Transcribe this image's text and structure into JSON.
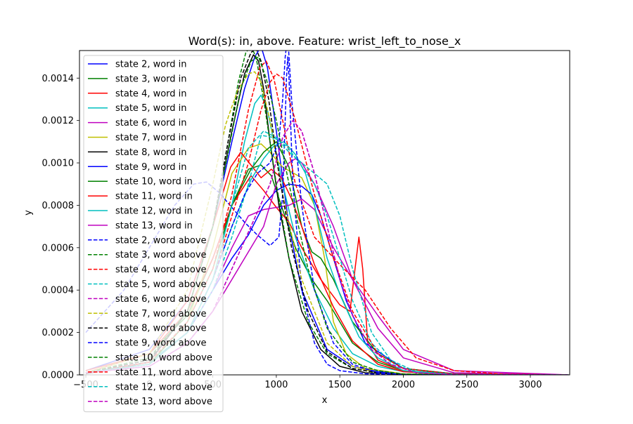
{
  "chart_data": {
    "type": "line",
    "title": "Word(s): in, above. Feature: wrist_left_to_nose_x",
    "xlabel": "x",
    "ylabel": "y",
    "xlim": [
      -550,
      3310
    ],
    "ylim": [
      0,
      0.00153
    ],
    "x_ticks": [
      -500,
      0,
      500,
      1000,
      1500,
      2000,
      2500,
      3000
    ],
    "x_tick_labels": [
      "−500",
      "0",
      "500",
      "1000",
      "1500",
      "2000",
      "2500",
      "3000"
    ],
    "y_ticks": [
      0,
      0.0002,
      0.0004,
      0.0006,
      0.0008,
      0.001,
      0.0012,
      0.0014
    ],
    "y_tick_labels": [
      "0.0000",
      "0.0002",
      "0.0004",
      "0.0006",
      "0.0008",
      "0.0010",
      "0.0012",
      "0.0014"
    ],
    "grid": false,
    "legend_position": "upper-left",
    "series": [
      {
        "name": "state 2, word in",
        "color": "#0000ff",
        "dash": "solid",
        "x": [
          -500,
          0,
          300,
          500,
          650,
          750,
          830,
          880,
          930,
          1000,
          1100,
          1200,
          1400,
          1600,
          1800,
          2000,
          2400,
          3300
        ],
        "y": [
          2e-05,
          0.00012,
          0.00035,
          0.0007,
          0.0011,
          0.00135,
          0.0015,
          0.00155,
          0.00145,
          0.00115,
          0.0007,
          0.0004,
          0.00012,
          4e-05,
          1.5e-05,
          5e-06,
          1e-06,
          0.0
        ]
      },
      {
        "name": "state 3, word in",
        "color": "#008000",
        "dash": "solid",
        "x": [
          -500,
          0,
          300,
          500,
          650,
          780,
          880,
          960,
          1050,
          1150,
          1280,
          1400,
          1600,
          1800,
          2000,
          2400,
          3300
        ],
        "y": [
          2e-05,
          0.0001,
          0.00028,
          0.00055,
          0.0008,
          0.00097,
          0.00099,
          0.00094,
          0.00078,
          0.0006,
          0.00045,
          0.00035,
          0.00015,
          6e-05,
          2e-05,
          3e-06,
          0.0
        ]
      },
      {
        "name": "state 4, word in",
        "color": "#ff0000",
        "dash": "solid",
        "x": [
          -500,
          0,
          300,
          500,
          650,
          800,
          900,
          1000,
          1100,
          1200,
          1350,
          1500,
          1580,
          1620,
          1650,
          1680,
          1720,
          1800,
          2000,
          2400,
          3300
        ],
        "y": [
          2e-05,
          0.0001,
          0.0003,
          0.00055,
          0.0008,
          0.00094,
          0.00087,
          0.00079,
          0.00072,
          0.0006,
          0.00045,
          0.00033,
          0.0003,
          0.0005,
          0.00065,
          0.0005,
          0.00015,
          7e-05,
          2e-05,
          4e-06,
          0.0
        ]
      },
      {
        "name": "state 5, word in",
        "color": "#00bfbf",
        "dash": "solid",
        "x": [
          -500,
          0,
          300,
          500,
          650,
          750,
          830,
          880,
          930,
          980,
          1050,
          1150,
          1300,
          1450,
          1600,
          1800,
          2000,
          2400,
          3300
        ],
        "y": [
          1e-05,
          6e-05,
          0.0002,
          0.00045,
          0.0008,
          0.0011,
          0.00128,
          0.00132,
          0.00125,
          0.0011,
          0.0009,
          0.00065,
          0.0004,
          0.00022,
          0.0001,
          4e-05,
          1.5e-05,
          3e-06,
          0.0
        ]
      },
      {
        "name": "state 6, word in",
        "color": "#bf00bf",
        "dash": "solid",
        "x": [
          -500,
          0,
          300,
          500,
          650,
          780,
          900,
          1000,
          1100,
          1200,
          1300,
          1450,
          1600,
          1800,
          2000,
          2400,
          3300
        ],
        "y": [
          1e-05,
          5e-05,
          0.0002,
          0.0004,
          0.0006,
          0.00075,
          0.00078,
          0.00079,
          0.0008,
          0.00083,
          0.00078,
          0.0006,
          0.00045,
          0.00028,
          0.00012,
          2e-05,
          0.0
        ]
      },
      {
        "name": "state 7, word in",
        "color": "#bfbf00",
        "dash": "solid",
        "x": [
          -500,
          0,
          300,
          500,
          650,
          780,
          880,
          950,
          1050,
          1200,
          1300,
          1380,
          1450,
          1550,
          1700,
          2000,
          2400,
          3300
        ],
        "y": [
          1e-05,
          5e-05,
          0.00025,
          0.0006,
          0.00095,
          0.00107,
          0.00109,
          0.00105,
          0.00098,
          0.00093,
          0.0008,
          0.00055,
          0.00025,
          0.0001,
          3e-05,
          5e-06,
          1e-06,
          0.0
        ]
      },
      {
        "name": "state 8, word in",
        "color": "#000000",
        "dash": "solid",
        "x": [
          -500,
          0,
          300,
          500,
          650,
          750,
          820,
          860,
          900,
          950,
          1020,
          1100,
          1200,
          1350,
          1500,
          1700,
          2000,
          2400,
          3300
        ],
        "y": [
          5e-06,
          6e-05,
          0.0003,
          0.0007,
          0.00115,
          0.00142,
          0.00151,
          0.00148,
          0.00135,
          0.0011,
          0.0008,
          0.00055,
          0.0003,
          0.00012,
          4e-05,
          1e-05,
          2e-06,
          0.0,
          0.0
        ]
      },
      {
        "name": "state 9, word in",
        "color": "#0000ff",
        "dash": "solid",
        "x": [
          -500,
          0,
          300,
          500,
          650,
          780,
          900,
          1000,
          1100,
          1200,
          1280,
          1350,
          1450,
          1550,
          1700,
          2000,
          2400,
          3300
        ],
        "y": [
          1e-05,
          5e-05,
          0.0002,
          0.0004,
          0.00055,
          0.00066,
          0.0008,
          0.00087,
          0.0009,
          0.00089,
          0.00085,
          0.00075,
          0.00055,
          0.00035,
          0.00015,
          3e-05,
          5e-06,
          0.0
        ]
      },
      {
        "name": "state 10, word in",
        "color": "#008000",
        "dash": "solid",
        "x": [
          -500,
          0,
          300,
          500,
          650,
          800,
          900,
          1000,
          1100,
          1200,
          1280,
          1350,
          1450,
          1600,
          1800,
          2000,
          2400,
          3300
        ],
        "y": [
          1e-05,
          5e-05,
          0.00025,
          0.0005,
          0.0008,
          0.00097,
          0.00105,
          0.0011,
          0.00098,
          0.0007,
          0.00058,
          0.00055,
          0.00045,
          0.00025,
          0.0001,
          3e-05,
          5e-06,
          0.0
        ]
      },
      {
        "name": "state 11, word in",
        "color": "#ff0000",
        "dash": "solid",
        "x": [
          -500,
          0,
          300,
          500,
          640,
          720,
          800,
          880,
          960,
          1040,
          1120,
          1200,
          1300,
          1450,
          1600,
          1800,
          2000,
          2400,
          3300
        ],
        "y": [
          1e-05,
          0.0001,
          0.00035,
          0.0007,
          0.00098,
          0.00105,
          0.00099,
          0.00093,
          0.00097,
          0.00093,
          0.00083,
          0.0007,
          0.00052,
          0.00032,
          0.00016,
          5e-05,
          1.5e-05,
          2e-06,
          0.0
        ]
      },
      {
        "name": "state 12, word in",
        "color": "#00bfbf",
        "dash": "solid",
        "x": [
          -500,
          0,
          300,
          500,
          650,
          800,
          900,
          980,
          1060,
          1150,
          1230,
          1300,
          1400,
          1500,
          1650,
          1800,
          2000,
          2400,
          3300
        ],
        "y": [
          1e-05,
          5e-05,
          0.0002,
          0.00045,
          0.0007,
          0.00092,
          0.00102,
          0.00108,
          0.0011,
          0.00104,
          0.00095,
          0.0008,
          0.00055,
          0.00038,
          0.00018,
          8e-05,
          2e-05,
          3e-06,
          0.0
        ]
      },
      {
        "name": "state 13, word in",
        "color": "#bf00bf",
        "dash": "solid",
        "x": [
          -500,
          0,
          300,
          500,
          650,
          800,
          900,
          1000,
          1100,
          1150,
          1200,
          1300,
          1450,
          1600,
          1800,
          2000,
          2400,
          3300
        ],
        "y": [
          1e-05,
          4e-05,
          0.00015,
          0.0003,
          0.00045,
          0.0006,
          0.0007,
          0.0009,
          0.001,
          0.00102,
          0.001,
          0.0009,
          0.0007,
          0.00045,
          0.00022,
          8e-05,
          1e-05,
          0.0
        ]
      },
      {
        "name": "state 2, word above",
        "color": "#0000ff",
        "dash": "dashed",
        "x": [
          -500,
          -200,
          0,
          200,
          350,
          450,
          550,
          650,
          750,
          850,
          950,
          1020,
          1050,
          1070,
          1080,
          1090,
          1100,
          1130,
          1200,
          1300,
          1400,
          1500,
          1700,
          2000,
          2400,
          3300
        ],
        "y": [
          0.0002,
          0.0004,
          0.0006,
          0.0008,
          0.0009,
          0.00091,
          0.00086,
          0.00079,
          0.00072,
          0.00066,
          0.00061,
          0.00065,
          0.00085,
          0.0012,
          0.0014,
          0.0015,
          0.0014,
          0.0009,
          0.0004,
          0.00015,
          5e-05,
          2e-05,
          5e-06,
          1e-06,
          0.0,
          0.0
        ]
      },
      {
        "name": "state 3, word above",
        "color": "#008000",
        "dash": "dashed",
        "x": [
          -500,
          0,
          300,
          500,
          620,
          700,
          760,
          800,
          840,
          900,
          1000,
          1100,
          1250,
          1400,
          1600,
          1800,
          2000,
          2400,
          3300
        ],
        "y": [
          1e-05,
          7e-05,
          0.0003,
          0.0007,
          0.0011,
          0.00138,
          0.00152,
          0.00155,
          0.0015,
          0.0013,
          0.0009,
          0.00055,
          0.00025,
          0.0001,
          3e-05,
          1e-05,
          2e-06,
          0.0,
          0.0
        ]
      },
      {
        "name": "state 4, word above",
        "color": "#ff0000",
        "dash": "dashed",
        "x": [
          -500,
          0,
          300,
          500,
          650,
          780,
          870,
          920,
          980,
          1050,
          1150,
          1300,
          1500,
          1700,
          1900,
          2100,
          2400,
          2800,
          3300
        ],
        "y": [
          1e-05,
          6e-05,
          0.00025,
          0.0005,
          0.00085,
          0.00125,
          0.00145,
          0.00148,
          0.0014,
          0.0012,
          0.0009,
          0.00065,
          0.00052,
          0.0004,
          0.00022,
          8e-05,
          2e-05,
          3e-06,
          0.0
        ]
      },
      {
        "name": "state 5, word above",
        "color": "#00bfbf",
        "dash": "dashed",
        "x": [
          -500,
          0,
          300,
          500,
          650,
          780,
          880,
          980,
          1080,
          1180,
          1300,
          1400,
          1500,
          1600,
          1750,
          1900,
          2100,
          2400,
          3300
        ],
        "y": [
          1e-05,
          5e-05,
          0.0002,
          0.0004,
          0.00065,
          0.0009,
          0.00113,
          0.00112,
          0.00108,
          0.001,
          0.0009,
          0.00075,
          0.00055,
          0.00035,
          0.00015,
          6e-05,
          1e-05,
          2e-06,
          0.0
        ]
      },
      {
        "name": "state 6, word above",
        "color": "#bf00bf",
        "dash": "dashed",
        "x": [
          -500,
          0,
          300,
          500,
          650,
          800,
          950,
          1050,
          1130,
          1200,
          1300,
          1400,
          1500,
          1600,
          1750,
          1900,
          2100,
          2400,
          3300
        ],
        "y": [
          1e-05,
          4e-05,
          0.00015,
          0.0003,
          0.0005,
          0.0007,
          0.0009,
          0.00112,
          0.0012,
          0.00115,
          0.00095,
          0.0007,
          0.00045,
          0.00028,
          0.00012,
          5e-05,
          1e-05,
          2e-06,
          0.0
        ]
      },
      {
        "name": "state 7, word above",
        "color": "#bfbf00",
        "dash": "dashed",
        "x": [
          -500,
          0,
          300,
          500,
          600,
          700,
          780,
          830,
          880,
          950,
          1050,
          1200,
          1400,
          1600,
          1800,
          2000,
          2400,
          3300
        ],
        "y": [
          1e-05,
          0.0001,
          0.0004,
          0.0009,
          0.00118,
          0.00135,
          0.00142,
          0.00143,
          0.00138,
          0.0012,
          0.00085,
          0.00045,
          0.00015,
          4e-05,
          1e-05,
          2e-06,
          0.0,
          0.0
        ]
      },
      {
        "name": "state 8, word above",
        "color": "#000000",
        "dash": "dashed",
        "x": [
          -500,
          0,
          300,
          500,
          620,
          720,
          800,
          840,
          880,
          940,
          1020,
          1120,
          1250,
          1400,
          1600,
          1800,
          2000,
          2400,
          3300
        ],
        "y": [
          1e-05,
          7e-05,
          0.0003,
          0.0007,
          0.0011,
          0.0014,
          0.00152,
          0.00154,
          0.00148,
          0.0013,
          0.00095,
          0.0006,
          0.0003,
          0.00011,
          3e-05,
          1e-05,
          2e-06,
          0.0,
          0.0
        ]
      },
      {
        "name": "state 9, word above",
        "color": "#0000ff",
        "dash": "dashed",
        "x": [
          -500,
          0,
          300,
          500,
          650,
          750,
          850,
          950,
          1020,
          1050,
          1070,
          1090,
          1120,
          1200,
          1300,
          1450,
          1600,
          1800,
          2000,
          2400,
          3300
        ],
        "y": [
          1e-05,
          5e-05,
          0.0002,
          0.00045,
          0.0007,
          0.00085,
          0.00095,
          0.001,
          0.0011,
          0.0013,
          0.0015,
          0.0016,
          0.0013,
          0.0008,
          0.0004,
          0.00015,
          5e-05,
          1e-05,
          2e-06,
          0.0,
          0.0
        ]
      },
      {
        "name": "state 10, word above",
        "color": "#008000",
        "dash": "dashed",
        "x": [
          -500,
          0,
          300,
          500,
          620,
          720,
          800,
          860,
          920,
          1000,
          1100,
          1250,
          1400,
          1600,
          1800,
          2000,
          2400,
          3300
        ],
        "y": [
          1e-05,
          8e-05,
          0.0003,
          0.0007,
          0.00105,
          0.00135,
          0.00148,
          0.0015,
          0.0014,
          0.0012,
          0.0009,
          0.0005,
          0.00022,
          6e-05,
          2e-05,
          4e-06,
          0.0,
          0.0
        ]
      },
      {
        "name": "state 11, word above",
        "color": "#ff0000",
        "dash": "dashed",
        "x": [
          -500,
          0,
          300,
          500,
          650,
          780,
          880,
          950,
          1000,
          1050,
          1150,
          1300,
          1450,
          1600,
          1800,
          2000,
          2400,
          3300
        ],
        "y": [
          1e-05,
          5e-05,
          0.0002,
          0.00045,
          0.00075,
          0.001,
          0.00125,
          0.00138,
          0.00142,
          0.0014,
          0.0012,
          0.00085,
          0.00055,
          0.0003,
          0.0001,
          3e-05,
          4e-06,
          0.0
        ]
      },
      {
        "name": "state 12, word above",
        "color": "#00bfbf",
        "dash": "dashed",
        "x": [
          -500,
          0,
          300,
          500,
          650,
          780,
          900,
          1000,
          1100,
          1200,
          1300,
          1400,
          1500,
          1600,
          1750,
          1900,
          2100,
          2400,
          3300
        ],
        "y": [
          1e-05,
          5e-05,
          0.0002,
          0.00045,
          0.0008,
          0.00107,
          0.00115,
          0.00112,
          0.00105,
          0.001,
          0.00095,
          0.0009,
          0.00075,
          0.0005,
          0.0002,
          7e-05,
          1.5e-05,
          2e-06,
          0.0
        ]
      },
      {
        "name": "state 13, word above",
        "color": "#bf00bf",
        "dash": "dashed",
        "x": [
          -500,
          0,
          300,
          500,
          650,
          800,
          950,
          1050,
          1130,
          1200,
          1300,
          1400,
          1500,
          1600,
          1750,
          1900,
          2100,
          2400,
          3300
        ],
        "y": [
          1e-05,
          4e-05,
          0.00015,
          0.0003,
          0.0005,
          0.0007,
          0.0009,
          0.00112,
          0.0012,
          0.00115,
          0.00095,
          0.0007,
          0.00045,
          0.00028,
          0.00012,
          5e-05,
          1e-05,
          2e-06,
          0.0
        ]
      }
    ]
  }
}
